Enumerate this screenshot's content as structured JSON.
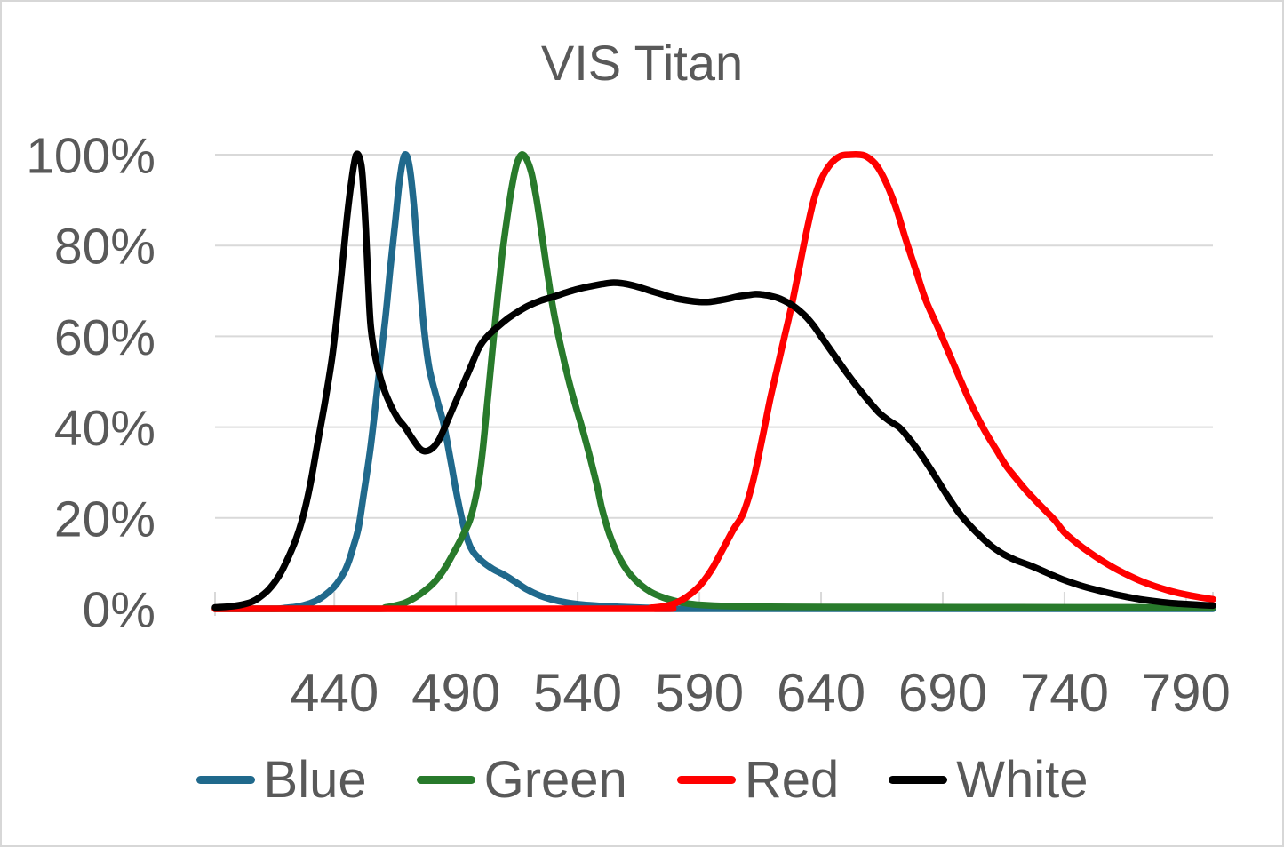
{
  "ui": {
    "background_color": "#FFFFFF",
    "border_color": "#D7D7D7",
    "text_color": "#595959",
    "gridline_color": "#D9D9D9"
  },
  "chart_data": {
    "type": "line",
    "title": "VIS Titan",
    "xlabel": "",
    "ylabel": "",
    "x_min": 391,
    "x_max": 801,
    "x_ticks": [
      440,
      490,
      540,
      590,
      640,
      690,
      740,
      790
    ],
    "ylim": [
      0,
      100
    ],
    "y_ticks": [
      {
        "value": 0,
        "label": "0%"
      },
      {
        "value": 20,
        "label": "20%"
      },
      {
        "value": 40,
        "label": "40%"
      },
      {
        "value": 60,
        "label": "60%"
      },
      {
        "value": 80,
        "label": "80%"
      },
      {
        "value": 100,
        "label": "100%"
      }
    ],
    "grid": "horizontal",
    "legend_position": "bottom",
    "series": [
      {
        "name": "Blue",
        "color": "#20698C",
        "points": [
          [
            391,
            0
          ],
          [
            415,
            0
          ],
          [
            420,
            0.2
          ],
          [
            425,
            0.5
          ],
          [
            430,
            1.2
          ],
          [
            434,
            2.2
          ],
          [
            438,
            3.8
          ],
          [
            441,
            5.5
          ],
          [
            444,
            8
          ],
          [
            446,
            10.5
          ],
          [
            448,
            14
          ],
          [
            450,
            18
          ],
          [
            452,
            25
          ],
          [
            455,
            36
          ],
          [
            458,
            50
          ],
          [
            461,
            64
          ],
          [
            463,
            75
          ],
          [
            465,
            85
          ],
          [
            467,
            95
          ],
          [
            469,
            100
          ],
          [
            471,
            97
          ],
          [
            473,
            87
          ],
          [
            475,
            73
          ],
          [
            477,
            61
          ],
          [
            479,
            53
          ],
          [
            482,
            46.5
          ],
          [
            485,
            40.5
          ],
          [
            488,
            32
          ],
          [
            490,
            26
          ],
          [
            493,
            18.5
          ],
          [
            496,
            13.5
          ],
          [
            500,
            10.8
          ],
          [
            505,
            8.8
          ],
          [
            510,
            7.4
          ],
          [
            515,
            5.7
          ],
          [
            519,
            4.3
          ],
          [
            524,
            3
          ],
          [
            529,
            2.1
          ],
          [
            535,
            1.4
          ],
          [
            542,
            0.9
          ],
          [
            550,
            0.6
          ],
          [
            558,
            0.4
          ],
          [
            568,
            0.2
          ],
          [
            580,
            0.1
          ],
          [
            590,
            0
          ],
          [
            801,
            0
          ]
        ]
      },
      {
        "name": "Green",
        "color": "#287A2B",
        "points": [
          [
            391,
            0
          ],
          [
            456,
            0
          ],
          [
            461,
            0.3
          ],
          [
            465,
            0.7
          ],
          [
            469,
            1.3
          ],
          [
            473,
            2.4
          ],
          [
            477,
            3.9
          ],
          [
            481,
            5.8
          ],
          [
            485,
            8.6
          ],
          [
            489,
            12.3
          ],
          [
            493,
            16.4
          ],
          [
            496,
            20
          ],
          [
            499,
            27
          ],
          [
            501,
            35
          ],
          [
            503,
            46
          ],
          [
            505,
            57
          ],
          [
            507,
            68
          ],
          [
            509,
            78
          ],
          [
            511,
            86
          ],
          [
            513,
            93
          ],
          [
            515,
            98
          ],
          [
            517,
            100
          ],
          [
            519,
            99
          ],
          [
            521,
            96
          ],
          [
            523,
            90.5
          ],
          [
            525,
            83.5
          ],
          [
            527,
            76
          ],
          [
            529,
            69
          ],
          [
            531,
            63
          ],
          [
            533,
            58
          ],
          [
            536,
            51
          ],
          [
            539,
            45
          ],
          [
            542,
            39.5
          ],
          [
            545,
            33.5
          ],
          [
            548,
            27
          ],
          [
            550,
            22
          ],
          [
            553,
            16.5
          ],
          [
            556,
            12.5
          ],
          [
            559,
            9.5
          ],
          [
            562,
            7.3
          ],
          [
            566,
            5.2
          ],
          [
            570,
            3.7
          ],
          [
            575,
            2.5
          ],
          [
            580,
            1.7
          ],
          [
            586,
            1.1
          ],
          [
            592,
            0.8
          ],
          [
            600,
            0.6
          ],
          [
            615,
            0.45
          ],
          [
            640,
            0.4
          ],
          [
            700,
            0.35
          ],
          [
            801,
            0.3
          ]
        ]
      },
      {
        "name": "Red",
        "color": "#FF0000",
        "points": [
          [
            391,
            0
          ],
          [
            565,
            0
          ],
          [
            570,
            0.2
          ],
          [
            575,
            0.5
          ],
          [
            579,
            1
          ],
          [
            583,
            2
          ],
          [
            587,
            3.5
          ],
          [
            590,
            5
          ],
          [
            593,
            7
          ],
          [
            596,
            9.5
          ],
          [
            600,
            13.5
          ],
          [
            604,
            17.5
          ],
          [
            608,
            21
          ],
          [
            612,
            28
          ],
          [
            616,
            38
          ],
          [
            619,
            46
          ],
          [
            622,
            53
          ],
          [
            625,
            60
          ],
          [
            628,
            67
          ],
          [
            631,
            75
          ],
          [
            634,
            83
          ],
          [
            637,
            90
          ],
          [
            640,
            94.5
          ],
          [
            644,
            98
          ],
          [
            648,
            99.7
          ],
          [
            652,
            100
          ],
          [
            656,
            100
          ],
          [
            659,
            99.5
          ],
          [
            663,
            97.5
          ],
          [
            667,
            93.5
          ],
          [
            671,
            88
          ],
          [
            675,
            81
          ],
          [
            679,
            74.5
          ],
          [
            683,
            68
          ],
          [
            688,
            62
          ],
          [
            692,
            57
          ],
          [
            696,
            52
          ],
          [
            700,
            47
          ],
          [
            704,
            42.5
          ],
          [
            708,
            38.5
          ],
          [
            712,
            35
          ],
          [
            716,
            31.5
          ],
          [
            720,
            28.8
          ],
          [
            724,
            26.2
          ],
          [
            728,
            23.9
          ],
          [
            732,
            21.7
          ],
          [
            736,
            19.5
          ],
          [
            740,
            16.8
          ],
          [
            745,
            14.5
          ],
          [
            750,
            12.5
          ],
          [
            755,
            10.7
          ],
          [
            760,
            9.1
          ],
          [
            765,
            7.7
          ],
          [
            771,
            6.2
          ],
          [
            777,
            5
          ],
          [
            783,
            4
          ],
          [
            789,
            3.2
          ],
          [
            795,
            2.6
          ],
          [
            801,
            2.1
          ]
        ]
      },
      {
        "name": "White",
        "color": "#000000",
        "points": [
          [
            391,
            0.3
          ],
          [
            397,
            0.5
          ],
          [
            402,
            0.9
          ],
          [
            406,
            1.5
          ],
          [
            409,
            2.4
          ],
          [
            413,
            4.2
          ],
          [
            417,
            7
          ],
          [
            420,
            10
          ],
          [
            424,
            15
          ],
          [
            427,
            20
          ],
          [
            430,
            27
          ],
          [
            433,
            36
          ],
          [
            436,
            45
          ],
          [
            439,
            55
          ],
          [
            441,
            64
          ],
          [
            443,
            74
          ],
          [
            445,
            85
          ],
          [
            447,
            94
          ],
          [
            449,
            100
          ],
          [
            451,
            98
          ],
          [
            452,
            92
          ],
          [
            453,
            83
          ],
          [
            454,
            71
          ],
          [
            455,
            62
          ],
          [
            457,
            55
          ],
          [
            460,
            49
          ],
          [
            463,
            45
          ],
          [
            466,
            42
          ],
          [
            469,
            40
          ],
          [
            472,
            37.5
          ],
          [
            475,
            35.3
          ],
          [
            477,
            34.7
          ],
          [
            479,
            34.9
          ],
          [
            481,
            35.7
          ],
          [
            483,
            37.2
          ],
          [
            485,
            39.5
          ],
          [
            487,
            42
          ],
          [
            489,
            44.5
          ],
          [
            491,
            47
          ],
          [
            493,
            49.5
          ],
          [
            495,
            52
          ],
          [
            497,
            54.5
          ],
          [
            499,
            57
          ],
          [
            501,
            58.8
          ],
          [
            504,
            60.6
          ],
          [
            508,
            62.5
          ],
          [
            512,
            64.2
          ],
          [
            516,
            65.6
          ],
          [
            520,
            66.8
          ],
          [
            525,
            67.9
          ],
          [
            530,
            68.7
          ],
          [
            535,
            69.6
          ],
          [
            540,
            70.4
          ],
          [
            545,
            71
          ],
          [
            550,
            71.5
          ],
          [
            554,
            71.8
          ],
          [
            558,
            71.7
          ],
          [
            562,
            71.3
          ],
          [
            566,
            70.7
          ],
          [
            570,
            70
          ],
          [
            575,
            69.2
          ],
          [
            580,
            68.4
          ],
          [
            585,
            67.9
          ],
          [
            590,
            67.6
          ],
          [
            594,
            67.6
          ],
          [
            598,
            67.9
          ],
          [
            602,
            68.3
          ],
          [
            606,
            68.8
          ],
          [
            610,
            69.1
          ],
          [
            613,
            69.3
          ],
          [
            616,
            69.2
          ],
          [
            619,
            68.9
          ],
          [
            622,
            68.5
          ],
          [
            625,
            67.8
          ],
          [
            628,
            66.9
          ],
          [
            631,
            65.7
          ],
          [
            634,
            64.2
          ],
          [
            637,
            62.3
          ],
          [
            640,
            60
          ],
          [
            643,
            57.7
          ],
          [
            646,
            55.4
          ],
          [
            649,
            53.1
          ],
          [
            652,
            50.9
          ],
          [
            655,
            48.8
          ],
          [
            658,
            46.8
          ],
          [
            661,
            44.9
          ],
          [
            664,
            43.1
          ],
          [
            668,
            41.4
          ],
          [
            672,
            40
          ],
          [
            676,
            37.6
          ],
          [
            680,
            34.8
          ],
          [
            684,
            31.6
          ],
          [
            688,
            28.2
          ],
          [
            692,
            24.8
          ],
          [
            696,
            21.6
          ],
          [
            700,
            19
          ],
          [
            705,
            16.2
          ],
          [
            710,
            13.8
          ],
          [
            715,
            12
          ],
          [
            720,
            10.7
          ],
          [
            725,
            9.7
          ],
          [
            730,
            8.6
          ],
          [
            735,
            7.4
          ],
          [
            740,
            6.3
          ],
          [
            746,
            5.2
          ],
          [
            752,
            4.3
          ],
          [
            758,
            3.5
          ],
          [
            764,
            2.8
          ],
          [
            771,
            2.1
          ],
          [
            778,
            1.6
          ],
          [
            785,
            1.2
          ],
          [
            791,
            1
          ],
          [
            796,
            0.85
          ],
          [
            801,
            0.7
          ]
        ]
      }
    ]
  }
}
